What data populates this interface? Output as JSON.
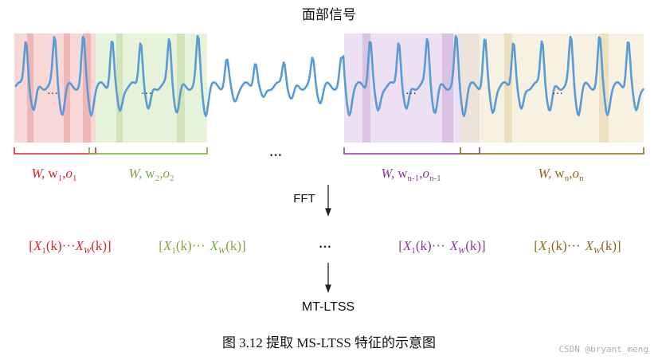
{
  "title": "面部信号",
  "ellipsis_mid": "···",
  "ellipsis_win": "···",
  "windows": [
    {
      "label_w": "W,",
      "label_sub": "w",
      "sub_index": "1",
      "label_o": "o",
      "o_index": "1",
      "color": "#d42a2a",
      "fill": "#f2b6b6"
    },
    {
      "label_w": "W,",
      "label_sub": "w",
      "sub_index": "2",
      "label_o": "o",
      "o_index": "2",
      "color": "#7aaa3c",
      "fill": "#d3e8bc"
    },
    {
      "label_w": "W,",
      "label_sub": "w",
      "sub_index": "n-1",
      "label_o": "o",
      "o_index": "n-1",
      "color": "#8a3c9c",
      "fill": "#dcc6e8"
    },
    {
      "label_w": "W,",
      "label_sub": "w",
      "sub_index": "n",
      "label_o": "o",
      "o_index": "n",
      "color": "#8c6a1c",
      "fill": "#efe6c8"
    }
  ],
  "fft_label": "FFT",
  "fft_outputs": [
    {
      "x1": "X",
      "i1": "1",
      "k1": "(k)",
      "dots": "···",
      "x2": "X",
      "i2": "W",
      "k2": "(k)",
      "color": "#d42a2a"
    },
    {
      "x1": "X",
      "i1": "1",
      "k1": "(k)",
      "dots": "···",
      "x2": "X",
      "i2": "W",
      "k2": "(k)",
      "color": "#7aaa3c"
    },
    {
      "x1": "X",
      "i1": "1",
      "k1": "(k)",
      "dots": "···",
      "x2": "X",
      "i2": "W",
      "k2": "(k)",
      "color": "#8a3c9c"
    },
    {
      "x1": "X",
      "i1": "1",
      "k1": "(k)",
      "dots": "···",
      "x2": "X",
      "i2": "W",
      "k2": "(k)",
      "color": "#8c6a1c"
    }
  ],
  "output_label": "MT-LTSS",
  "caption": "图 3.12  提取 MS-LTSS 特征的示意图",
  "watermark": "CSDN @bryant_meng",
  "signal_color": "#5b9bd5"
}
